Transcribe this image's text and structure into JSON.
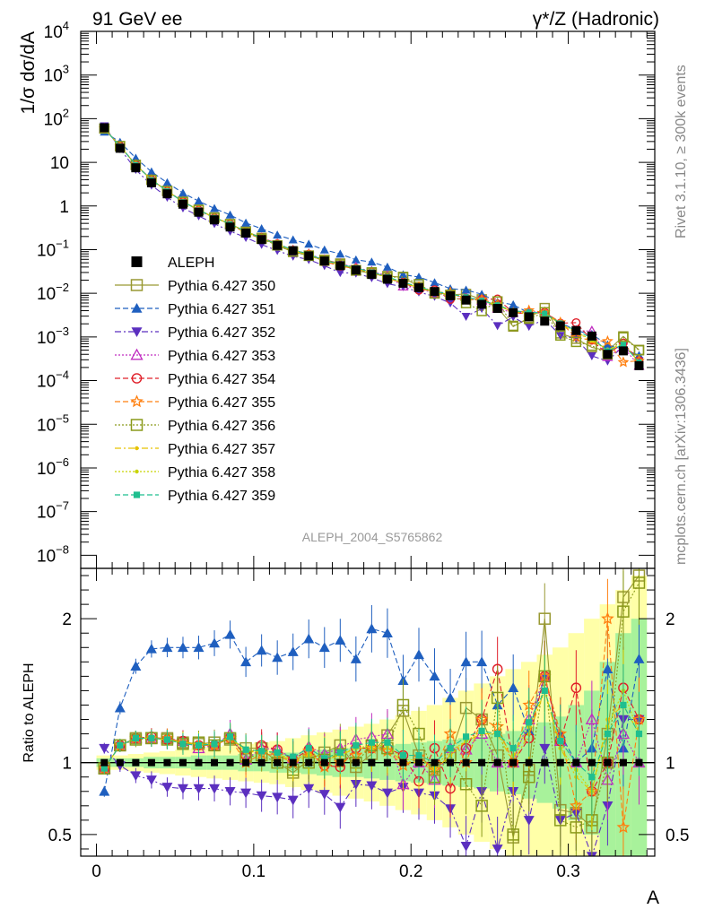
{
  "header": {
    "process": "91 GeV ee",
    "channel": "γ*/Z (Hadronic)"
  },
  "side_labels": {
    "rivet": "Rivet 3.1.10, ≥ 300k events",
    "site": "mcplots.cern.ch [arXiv:1306.3436]"
  },
  "analysis_label": "ALEPH_2004_S5765862",
  "chart_data": [
    {
      "type": "scatter",
      "panel": "main",
      "ylabel": "1/σ  dσ/dA",
      "yscale": "log",
      "ylim": [
        5e-09,
        10000
      ],
      "xlim": [
        -0.01,
        0.355
      ],
      "ytick_labels": [
        {
          "base": "10",
          "exp": "4"
        },
        {
          "base": "10",
          "exp": "3"
        },
        {
          "base": "10",
          "exp": "2"
        },
        {
          "base": "10",
          "exp": ""
        },
        {
          "base": "1",
          "exp": ""
        },
        {
          "base": "10",
          "exp": "−1"
        },
        {
          "base": "10",
          "exp": "−2"
        },
        {
          "base": "10",
          "exp": "−3"
        },
        {
          "base": "10",
          "exp": "−4"
        },
        {
          "base": "10",
          "exp": "−5"
        },
        {
          "base": "10",
          "exp": "−6"
        },
        {
          "base": "10",
          "exp": "−7"
        },
        {
          "base": "10",
          "exp": "−8"
        }
      ],
      "legend_placement": "center-left",
      "legend": [
        {
          "label": "ALEPH",
          "color": "#000000",
          "marker": "filled-square",
          "dash": "none"
        },
        {
          "label": "Pythia 6.427 350",
          "color": "#999933",
          "marker": "open-square",
          "dash": "solid"
        },
        {
          "label": "Pythia 6.427 351",
          "color": "#1f5fbf",
          "marker": "filled-triangle-up",
          "dash": "dashed"
        },
        {
          "label": "Pythia 6.427 352",
          "color": "#5b2fbf",
          "marker": "filled-triangle-down",
          "dash": "dashdot"
        },
        {
          "label": "Pythia 6.427 353",
          "color": "#c02cc0",
          "marker": "open-triangle-up",
          "dash": "dotted"
        },
        {
          "label": "Pythia 6.427 354",
          "color": "#e0202a",
          "marker": "open-circle",
          "dash": "dashed"
        },
        {
          "label": "Pythia 6.427 355",
          "color": "#ff7f0e",
          "marker": "open-star",
          "dash": "dashed"
        },
        {
          "label": "Pythia 6.427 356",
          "color": "#8a9a1a",
          "marker": "open-square",
          "dash": "dotted"
        },
        {
          "label": "Pythia 6.427 357",
          "color": "#e6c200",
          "marker": "small-dot",
          "dash": "dashdot"
        },
        {
          "label": "Pythia 6.427 358",
          "color": "#c8d400",
          "marker": "small-dot",
          "dash": "dotted"
        },
        {
          "label": "Pythia 6.427 359",
          "color": "#1fbf8f",
          "marker": "filled-square-small",
          "dash": "dashed"
        }
      ],
      "x": [
        0.005,
        0.015,
        0.025,
        0.035,
        0.045,
        0.055,
        0.065,
        0.075,
        0.085,
        0.095,
        0.105,
        0.115,
        0.125,
        0.135,
        0.145,
        0.155,
        0.165,
        0.175,
        0.185,
        0.195,
        0.205,
        0.215,
        0.225,
        0.235,
        0.245,
        0.255,
        0.265,
        0.275,
        0.285,
        0.295,
        0.305,
        0.315,
        0.325,
        0.335,
        0.345
      ],
      "data_values": [
        62,
        21,
        7.5,
        3.4,
        1.9,
        1.1,
        0.72,
        0.48,
        0.33,
        0.24,
        0.17,
        0.125,
        0.095,
        0.072,
        0.055,
        0.043,
        0.034,
        0.027,
        0.021,
        0.017,
        0.0135,
        0.011,
        0.0088,
        0.007,
        0.0056,
        0.0045,
        0.0036,
        0.0029,
        0.0023,
        0.0018,
        0.0014,
        0.00105,
        0.0004,
        0.00048,
        0.00022
      ]
    },
    {
      "type": "line",
      "panel": "ratio",
      "ylabel": "Ratio to ALEPH",
      "xlabel": "A",
      "ylim": [
        0.35,
        2.35
      ],
      "xlim": [
        -0.01,
        0.355
      ],
      "x_ticks": [
        0,
        0.1,
        0.2,
        0.3
      ],
      "x_tick_labels": [
        "0",
        "0.1",
        "0.2",
        "0.3"
      ],
      "y_ticks": [
        0.5,
        1,
        2
      ],
      "y_tick_labels": [
        "0.5",
        "1",
        "2"
      ],
      "x": [
        0.005,
        0.015,
        0.025,
        0.035,
        0.045,
        0.055,
        0.065,
        0.075,
        0.085,
        0.095,
        0.105,
        0.115,
        0.125,
        0.135,
        0.145,
        0.155,
        0.165,
        0.175,
        0.185,
        0.195,
        0.205,
        0.215,
        0.225,
        0.235,
        0.245,
        0.255,
        0.265,
        0.275,
        0.285,
        0.295,
        0.305,
        0.315,
        0.325,
        0.335,
        0.345
      ],
      "band_inner": [
        0.03,
        0.03,
        0.03,
        0.04,
        0.04,
        0.04,
        0.05,
        0.05,
        0.05,
        0.06,
        0.06,
        0.07,
        0.07,
        0.08,
        0.09,
        0.1,
        0.1,
        0.11,
        0.12,
        0.13,
        0.14,
        0.15,
        0.16,
        0.17,
        0.18,
        0.2,
        0.22,
        0.25,
        0.28,
        0.32,
        0.4,
        0.5,
        0.7,
        0.9,
        1.0
      ],
      "band_outer": [
        0.05,
        0.05,
        0.06,
        0.07,
        0.08,
        0.09,
        0.1,
        0.11,
        0.12,
        0.13,
        0.14,
        0.15,
        0.17,
        0.19,
        0.21,
        0.23,
        0.25,
        0.27,
        0.3,
        0.33,
        0.36,
        0.4,
        0.45,
        0.5,
        0.55,
        0.6,
        0.65,
        0.7,
        0.75,
        0.8,
        0.9,
        1.0,
        1.1,
        1.2,
        1.3
      ],
      "series": [
        {
          "name": "Pythia 6.427 350",
          "values": [
            0.96,
            1.12,
            1.17,
            1.17,
            1.17,
            1.14,
            1.13,
            1.14,
            1.16,
            1.1,
            1.1,
            1.0,
            0.93,
            1.02,
            1.07,
            1.12,
            0.97,
            1.06,
            1.19,
            1.36,
            1.05,
            0.95,
            1.05,
            1.38,
            1.3,
            1.05,
            0.48,
            0.95,
            2.0,
            0.67,
            0.65,
            0.55,
            1.2,
            2.15,
            2.3
          ]
        },
        {
          "name": "Pythia 6.427 351",
          "values": [
            0.8,
            1.38,
            1.67,
            1.79,
            1.8,
            1.8,
            1.8,
            1.83,
            1.89,
            1.7,
            1.78,
            1.73,
            1.77,
            1.86,
            1.8,
            1.85,
            1.72,
            1.93,
            1.9,
            1.57,
            1.75,
            1.6,
            1.45,
            1.7,
            1.7,
            1.4,
            1.52,
            1.22,
            1.6,
            1.2,
            1.0,
            1.1,
            1.65,
            1.1,
            1.72
          ]
        },
        {
          "name": "Pythia 6.427 352",
          "values": [
            1.1,
            0.98,
            0.91,
            0.88,
            0.83,
            0.82,
            0.82,
            0.82,
            0.8,
            0.79,
            0.77,
            0.76,
            0.74,
            0.82,
            0.78,
            0.69,
            0.85,
            0.84,
            0.79,
            0.83,
            0.79,
            0.77,
            0.68,
            0.42,
            0.8,
            0.4,
            0.8,
            0.6,
            1.1,
            0.6,
            0.65,
            0.35,
            0.7,
            1.3,
            1.3
          ]
        },
        {
          "name": "Pythia 6.427 353",
          "values": [
            0.96,
            1.12,
            1.17,
            1.17,
            1.17,
            1.15,
            1.1,
            1.12,
            1.2,
            1.02,
            1.1,
            1.09,
            1.03,
            1.11,
            1.06,
            1.1,
            1.16,
            1.18,
            1.2,
            0.85,
            1.0,
            0.88,
            1.1,
            1.09,
            1.2,
            1.0,
            1.0,
            1.3,
            1.6,
            1.15,
            1.0,
            1.3,
            0.88,
            1.2,
            1.0
          ]
        },
        {
          "name": "Pythia 6.427 354",
          "values": [
            0.96,
            1.12,
            1.17,
            1.18,
            1.16,
            1.15,
            1.12,
            1.12,
            1.17,
            1.05,
            1.12,
            1.09,
            1.02,
            1.09,
            0.98,
            0.97,
            1.1,
            1.1,
            1.1,
            1.05,
            0.87,
            1.1,
            0.82,
            1.1,
            1.3,
            1.65,
            1.0,
            1.17,
            1.6,
            1.15,
            1.52,
            0.8,
            1.0,
            1.52,
            1.3
          ]
        },
        {
          "name": "Pythia 6.427 355",
          "values": [
            0.96,
            1.12,
            1.17,
            1.17,
            1.17,
            1.14,
            1.12,
            1.12,
            1.17,
            1.0,
            1.06,
            1.05,
            1.0,
            1.08,
            0.97,
            1.0,
            1.05,
            1.1,
            1.08,
            0.98,
            1.04,
            0.95,
            1.2,
            1.0,
            1.3,
            1.25,
            1.0,
            1.4,
            1.6,
            1.2,
            0.7,
            0.8,
            2.0,
            0.55,
            1.3
          ]
        },
        {
          "name": "Pythia 6.427 356",
          "values": [
            0.96,
            1.12,
            1.16,
            1.17,
            1.16,
            1.13,
            1.14,
            1.12,
            1.17,
            1.04,
            1.05,
            1.0,
            0.95,
            1.0,
            1.02,
            1.06,
            1.0,
            1.12,
            1.1,
            1.4,
            1.2,
            0.9,
            1.05,
            0.85,
            0.7,
            1.45,
            0.5,
            0.9,
            1.6,
            0.6,
            0.55,
            0.6,
            1.0,
            2.05,
            2.25
          ]
        },
        {
          "name": "Pythia 6.427 357",
          "values": [
            0.96,
            1.12,
            1.17,
            1.17,
            1.16,
            1.14,
            1.13,
            1.12,
            1.18,
            1.07,
            1.08,
            1.07,
            1.0,
            1.05,
            1.02,
            1.05,
            1.1,
            1.1,
            1.1,
            1.0,
            1.0,
            0.95,
            1.05,
            1.15,
            1.2,
            1.2,
            1.0,
            1.2,
            1.5,
            1.1,
            0.9,
            0.8,
            1.3,
            1.4,
            1.2
          ]
        },
        {
          "name": "Pythia 6.427 358",
          "values": [
            0.96,
            1.12,
            1.17,
            1.17,
            1.16,
            1.14,
            1.13,
            1.13,
            1.18,
            1.08,
            1.08,
            1.06,
            1.02,
            1.06,
            1.04,
            1.06,
            1.1,
            1.12,
            1.12,
            1.02,
            1.02,
            0.97,
            1.08,
            1.15,
            1.22,
            1.2,
            1.05,
            1.25,
            1.5,
            1.1,
            0.95,
            0.8,
            1.25,
            1.5,
            1.2
          ]
        },
        {
          "name": "Pythia 6.427 359",
          "values": [
            0.96,
            1.12,
            1.17,
            1.17,
            1.16,
            1.13,
            1.12,
            1.13,
            1.18,
            1.09,
            1.08,
            1.07,
            1.04,
            1.1,
            1.03,
            1.07,
            1.12,
            1.14,
            1.14,
            1.05,
            1.05,
            1.0,
            1.1,
            1.18,
            1.22,
            1.2,
            1.1,
            1.28,
            1.5,
            1.15,
            1.0,
            0.9,
            1.2,
            1.4,
            1.2
          ]
        }
      ]
    }
  ]
}
